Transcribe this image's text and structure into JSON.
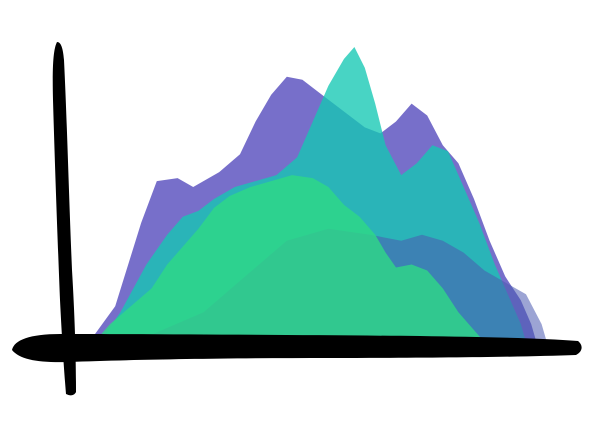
{
  "chart_data": {
    "type": "area",
    "title": "",
    "xlabel": "",
    "ylabel": "",
    "grid": false,
    "legend": "none",
    "xlim": [
      0,
      100
    ],
    "ylim": [
      0,
      100
    ],
    "series": [
      {
        "color": "#6b63c6",
        "opacity": 0.92,
        "points": [
          [
            6,
            0
          ],
          [
            11,
            12
          ],
          [
            16,
            40
          ],
          [
            19,
            54
          ],
          [
            23,
            55
          ],
          [
            26,
            52
          ],
          [
            31,
            57
          ],
          [
            35,
            63
          ],
          [
            38,
            74
          ],
          [
            41,
            83
          ],
          [
            44,
            89
          ],
          [
            47,
            88
          ],
          [
            50,
            84
          ],
          [
            53,
            80
          ],
          [
            56,
            76
          ],
          [
            59,
            72
          ],
          [
            62,
            70
          ],
          [
            65,
            74
          ],
          [
            68,
            80
          ],
          [
            71,
            76
          ],
          [
            74,
            66
          ],
          [
            77,
            60
          ],
          [
            80,
            48
          ],
          [
            83,
            34
          ],
          [
            86,
            22
          ],
          [
            89,
            14
          ],
          [
            91,
            6
          ],
          [
            92,
            0
          ]
        ]
      },
      {
        "color": "#14c8b4",
        "opacity": 0.78,
        "points": [
          [
            8,
            0
          ],
          [
            12,
            10
          ],
          [
            17,
            26
          ],
          [
            21,
            36
          ],
          [
            24,
            42
          ],
          [
            27,
            44
          ],
          [
            30,
            48
          ],
          [
            34,
            52
          ],
          [
            38,
            54
          ],
          [
            42,
            56
          ],
          [
            46,
            62
          ],
          [
            49,
            74
          ],
          [
            52,
            86
          ],
          [
            55,
            95
          ],
          [
            57,
            99
          ],
          [
            59,
            92
          ],
          [
            61,
            80
          ],
          [
            63,
            66
          ],
          [
            66,
            56
          ],
          [
            69,
            60
          ],
          [
            72,
            66
          ],
          [
            75,
            64
          ],
          [
            78,
            52
          ],
          [
            81,
            40
          ],
          [
            84,
            26
          ],
          [
            87,
            14
          ],
          [
            89,
            6
          ],
          [
            90,
            0
          ]
        ]
      },
      {
        "color": "#4a5ab0",
        "opacity": 0.55,
        "points": [
          [
            15,
            0
          ],
          [
            20,
            4
          ],
          [
            28,
            10
          ],
          [
            36,
            22
          ],
          [
            44,
            34
          ],
          [
            52,
            38
          ],
          [
            60,
            36
          ],
          [
            66,
            34
          ],
          [
            70,
            36
          ],
          [
            74,
            34
          ],
          [
            78,
            30
          ],
          [
            82,
            24
          ],
          [
            86,
            20
          ],
          [
            90,
            16
          ],
          [
            93,
            6
          ],
          [
            94,
            0
          ]
        ]
      },
      {
        "color": "#2ed886",
        "opacity": 0.82,
        "points": [
          [
            7,
            0
          ],
          [
            10,
            6
          ],
          [
            14,
            12
          ],
          [
            18,
            18
          ],
          [
            21,
            26
          ],
          [
            24,
            32
          ],
          [
            27,
            38
          ],
          [
            30,
            45
          ],
          [
            33,
            49
          ],
          [
            37,
            52
          ],
          [
            41,
            54
          ],
          [
            45,
            56
          ],
          [
            49,
            55
          ],
          [
            52,
            52
          ],
          [
            55,
            46
          ],
          [
            58,
            42
          ],
          [
            61,
            36
          ],
          [
            63,
            30
          ],
          [
            65,
            25
          ],
          [
            68,
            26
          ],
          [
            71,
            24
          ],
          [
            74,
            18
          ],
          [
            77,
            10
          ],
          [
            80,
            4
          ],
          [
            82,
            0
          ]
        ]
      }
    ]
  }
}
